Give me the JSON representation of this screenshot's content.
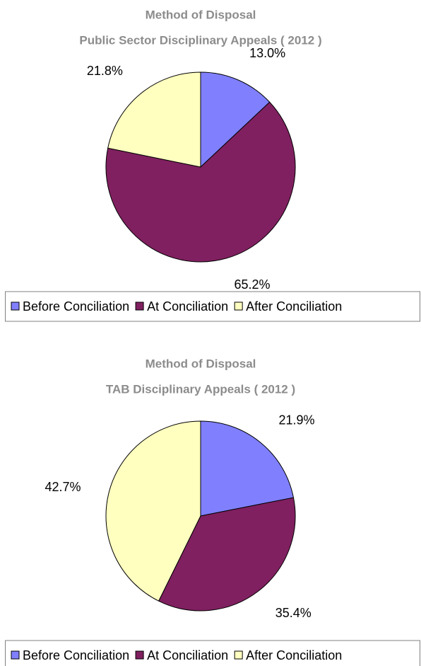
{
  "chart_data": [
    {
      "type": "pie",
      "title": "Method of Disposal",
      "subtitle": "Public Sector Disciplinary Appeals ( 2012 )",
      "categories": [
        "Before Conciliation",
        "At Conciliation",
        "After Conciliation"
      ],
      "values": [
        13.0,
        65.2,
        21.8
      ],
      "value_labels": [
        "13.0%",
        "65.2%",
        "21.8%"
      ],
      "colors": [
        "#8080ff",
        "#802060",
        "#ffffc0"
      ],
      "legend": "bottom"
    },
    {
      "type": "pie",
      "title": "Method of Disposal",
      "subtitle": "TAB Disciplinary Appeals ( 2012 )",
      "categories": [
        "Before Conciliation",
        "At Conciliation",
        "After Conciliation"
      ],
      "values": [
        21.9,
        35.4,
        42.7
      ],
      "value_labels": [
        "21.9%",
        "35.4%",
        "42.7%"
      ],
      "colors": [
        "#8080ff",
        "#802060",
        "#ffffc0"
      ],
      "legend": "bottom"
    }
  ]
}
